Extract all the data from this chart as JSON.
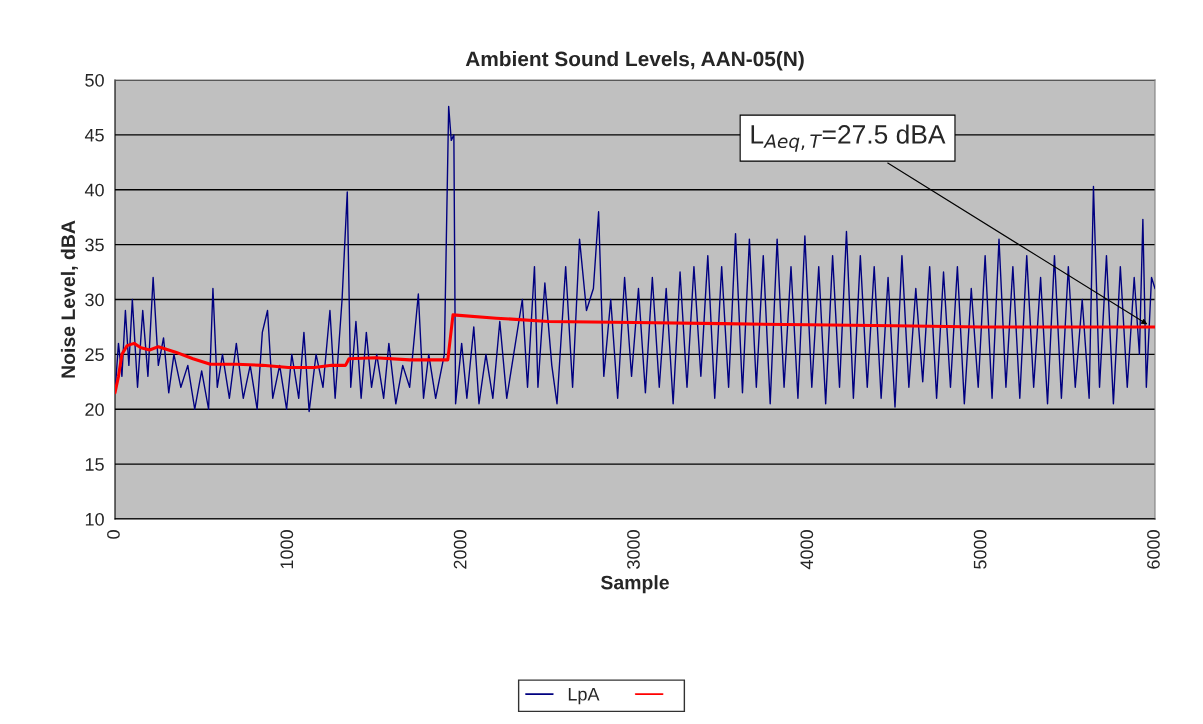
{
  "chart_data": {
    "type": "line",
    "title": "Ambient Sound Levels, AAN-05(N)",
    "xlabel": "Sample",
    "ylabel": "Noise Level, dBA",
    "xlim": [
      0,
      6000
    ],
    "xticks": [
      0,
      1000,
      2000,
      3000,
      4000,
      5000,
      6000
    ],
    "ylim": [
      10,
      50
    ],
    "yticks": [
      10,
      15,
      20,
      25,
      30,
      35,
      40,
      45,
      50
    ],
    "grid": "y",
    "legend": "bottom",
    "marker": "none",
    "line_style": "solid",
    "annotations": [
      {
        "text": "L$_{Aeq,T}$=27.5 dBA",
        "x": 5970,
        "y": 27.6
      }
    ],
    "series": [
      {
        "name": "LpA",
        "color": "#000080",
        "x": [
          0,
          20,
          40,
          60,
          80,
          100,
          130,
          160,
          190,
          220,
          250,
          280,
          310,
          340,
          380,
          420,
          460,
          500,
          540,
          565,
          590,
          620,
          660,
          700,
          740,
          780,
          820,
          850,
          880,
          910,
          950,
          990,
          1020,
          1060,
          1090,
          1120,
          1160,
          1200,
          1240,
          1270,
          1310,
          1340,
          1360,
          1390,
          1420,
          1450,
          1480,
          1510,
          1550,
          1580,
          1620,
          1660,
          1700,
          1750,
          1780,
          1810,
          1850,
          1900,
          1925,
          1940,
          1955,
          1965,
          2000,
          2030,
          2070,
          2100,
          2140,
          2180,
          2220,
          2260,
          2300,
          2350,
          2380,
          2420,
          2440,
          2480,
          2520,
          2550,
          2600,
          2640,
          2680,
          2720,
          2760,
          2790,
          2820,
          2860,
          2900,
          2940,
          2980,
          3020,
          3060,
          3100,
          3140,
          3180,
          3220,
          3260,
          3300,
          3340,
          3380,
          3420,
          3460,
          3500,
          3540,
          3580,
          3620,
          3660,
          3700,
          3740,
          3780,
          3820,
          3860,
          3900,
          3940,
          3980,
          4020,
          4060,
          4100,
          4140,
          4180,
          4220,
          4260,
          4300,
          4340,
          4380,
          4420,
          4460,
          4500,
          4540,
          4580,
          4620,
          4660,
          4700,
          4740,
          4780,
          4820,
          4860,
          4900,
          4940,
          4980,
          5020,
          5060,
          5100,
          5140,
          5180,
          5220,
          5260,
          5300,
          5340,
          5380,
          5420,
          5460,
          5500,
          5540,
          5580,
          5620,
          5645,
          5680,
          5720,
          5760,
          5800,
          5840,
          5880,
          5910,
          5930,
          5950,
          5980,
          6000
        ],
        "values": [
          21.5,
          26,
          23,
          29,
          24,
          30,
          22,
          29,
          23,
          32,
          24,
          26.5,
          21.5,
          25,
          22,
          24,
          20,
          23.5,
          20,
          31,
          22,
          25,
          21,
          26,
          21,
          24,
          20,
          27,
          29,
          21,
          24,
          20,
          25,
          21,
          27,
          19.8,
          25,
          22,
          29,
          21,
          30,
          39.8,
          22,
          28,
          21,
          27,
          22,
          25,
          21,
          26,
          20.5,
          24,
          22,
          30.5,
          21,
          25,
          21,
          25,
          47.6,
          44.5,
          45,
          20.5,
          26,
          21,
          27.5,
          20.5,
          25,
          21,
          28,
          21,
          25,
          30,
          22,
          33,
          22,
          31.5,
          24,
          20.5,
          33,
          22,
          35.5,
          29,
          31,
          38,
          23,
          30,
          21,
          32,
          23,
          31,
          21.5,
          32,
          22,
          31,
          20.5,
          32.5,
          22,
          33,
          23,
          34,
          21,
          33,
          22,
          36,
          21.5,
          35.5,
          22,
          34,
          20.5,
          35.5,
          22,
          33,
          21,
          35.8,
          22,
          33,
          20.5,
          34,
          22,
          36.2,
          21,
          34,
          22,
          33,
          21,
          32,
          20.2,
          34,
          22,
          31,
          22.5,
          33,
          21,
          32.5,
          22,
          33,
          20.5,
          31,
          22,
          34,
          21,
          35.5,
          22,
          33,
          21,
          34,
          22,
          32,
          20.5,
          34,
          21,
          33,
          22,
          30,
          21,
          40.3,
          22,
          34,
          20.5,
          33,
          22,
          32,
          25,
          37.3,
          22,
          32,
          31
        ]
      },
      {
        "color": "#ff0000",
        "x": [
          0,
          20,
          40,
          70,
          110,
          150,
          200,
          250,
          350,
          450,
          550,
          700,
          850,
          1000,
          1150,
          1250,
          1330,
          1350,
          1500,
          1700,
          1920,
          1950,
          2200,
          2500,
          3000,
          3500,
          4000,
          4500,
          5000,
          6000
        ],
        "values": [
          21.5,
          23,
          25,
          25.8,
          26,
          25.6,
          25.4,
          25.7,
          25.2,
          24.6,
          24.1,
          24.1,
          24,
          23.8,
          23.8,
          24,
          24,
          24.6,
          24.7,
          24.5,
          24.5,
          28.6,
          28.3,
          28,
          27.9,
          27.8,
          27.7,
          27.6,
          27.5,
          27.5
        ]
      }
    ]
  }
}
